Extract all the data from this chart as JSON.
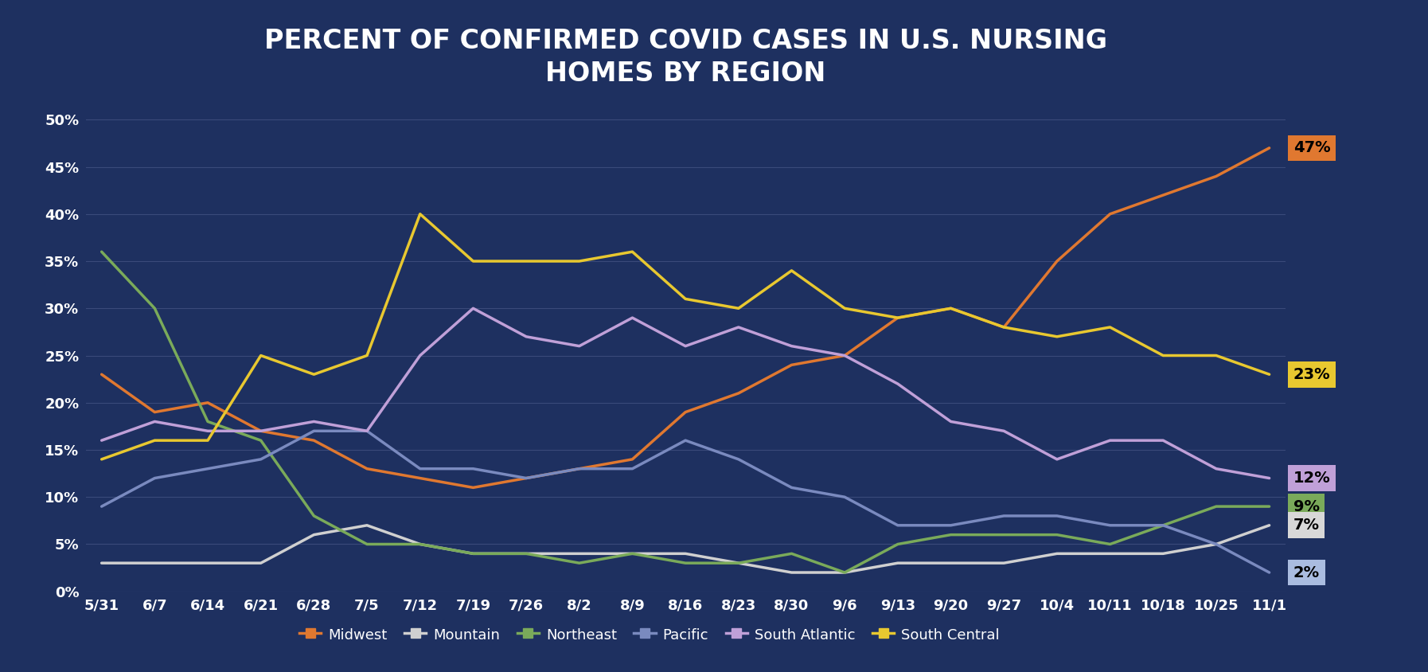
{
  "title": "PERCENT OF CONFIRMED COVID CASES IN U.S. NURSING\nHOMES BY REGION",
  "background_color": "#1e3060",
  "grid_color": "#3a4a7a",
  "text_color": "#ffffff",
  "x_labels": [
    "5/31",
    "6/7",
    "6/14",
    "6/21",
    "6/28",
    "7/5",
    "7/12",
    "7/19",
    "7/26",
    "8/2",
    "8/9",
    "8/16",
    "8/23",
    "8/30",
    "9/6",
    "9/13",
    "9/20",
    "9/27",
    "10/4",
    "10/11",
    "10/18",
    "10/25",
    "11/1"
  ],
  "series": {
    "Midwest": {
      "color": "#e07830",
      "values": [
        23,
        19,
        20,
        17,
        16,
        13,
        12,
        11,
        12,
        13,
        14,
        19,
        21,
        24,
        25,
        29,
        30,
        28,
        35,
        40,
        42,
        44,
        47
      ]
    },
    "Mountain": {
      "color": "#d0d0d0",
      "values": [
        3,
        3,
        3,
        3,
        6,
        7,
        5,
        4,
        4,
        4,
        4,
        4,
        3,
        2,
        2,
        3,
        3,
        3,
        4,
        4,
        4,
        5,
        7
      ]
    },
    "Northeast": {
      "color": "#7aaa5a",
      "values": [
        36,
        30,
        18,
        16,
        8,
        5,
        5,
        4,
        4,
        3,
        4,
        3,
        3,
        4,
        2,
        5,
        6,
        6,
        6,
        5,
        7,
        9,
        9
      ]
    },
    "Pacific": {
      "color": "#7a8abf",
      "values": [
        9,
        12,
        13,
        14,
        17,
        17,
        13,
        13,
        12,
        13,
        13,
        16,
        14,
        11,
        10,
        7,
        7,
        8,
        8,
        7,
        7,
        5,
        2
      ]
    },
    "South Atlantic": {
      "color": "#c0a0d8",
      "values": [
        16,
        18,
        17,
        17,
        18,
        17,
        25,
        30,
        27,
        26,
        29,
        26,
        28,
        26,
        25,
        22,
        18,
        17,
        14,
        16,
        16,
        13,
        12
      ]
    },
    "South Central": {
      "color": "#e8c830",
      "values": [
        14,
        16,
        16,
        25,
        23,
        25,
        40,
        35,
        35,
        35,
        36,
        31,
        30,
        34,
        30,
        29,
        30,
        28,
        27,
        28,
        25,
        25,
        23
      ]
    }
  },
  "end_labels": [
    {
      "name": "Midwest",
      "value": 47,
      "label": "47%",
      "bg": "#e07830",
      "text": "#000000"
    },
    {
      "name": "South Central",
      "value": 23,
      "label": "23%",
      "bg": "#e8c830",
      "text": "#000000"
    },
    {
      "name": "South Atlantic",
      "value": 12,
      "label": "12%",
      "bg": "#c0a0d8",
      "text": "#000000"
    },
    {
      "name": "Northeast",
      "value": 9,
      "label": "9%",
      "bg": "#7aaa5a",
      "text": "#000000"
    },
    {
      "name": "Mountain",
      "value": 7,
      "label": "7%",
      "bg": "#d8d8d8",
      "text": "#000000"
    },
    {
      "name": "Pacific",
      "value": 2,
      "label": "2%",
      "bg": "#aabce0",
      "text": "#000000"
    }
  ],
  "ylim": [
    0,
    52
  ],
  "yticks": [
    0,
    5,
    10,
    15,
    20,
    25,
    30,
    35,
    40,
    45,
    50
  ],
  "title_fontsize": 24,
  "legend_order": [
    "Midwest",
    "Mountain",
    "Northeast",
    "Pacific",
    "South Atlantic",
    "South Central"
  ],
  "legend_colors": [
    "#e07830",
    "#d0d0d0",
    "#7aaa5a",
    "#7a8abf",
    "#c0a0d8",
    "#e8c830"
  ]
}
